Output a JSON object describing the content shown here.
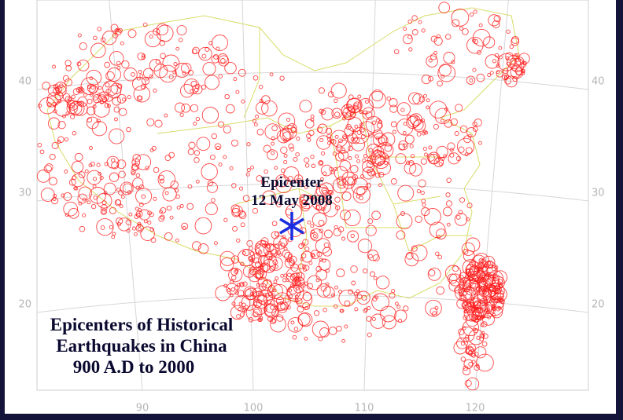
{
  "map": {
    "annotation": {
      "line1": "Epicenter",
      "line2": "12 May 2008"
    },
    "title": {
      "line1": "Epicenters of Historical",
      "line2": "Earthquakes in China",
      "line3": "900 A.D to 2000"
    },
    "lat_ticks": [
      40,
      30,
      20
    ],
    "lon_ticks": [
      90,
      100,
      110,
      120
    ]
  }
}
